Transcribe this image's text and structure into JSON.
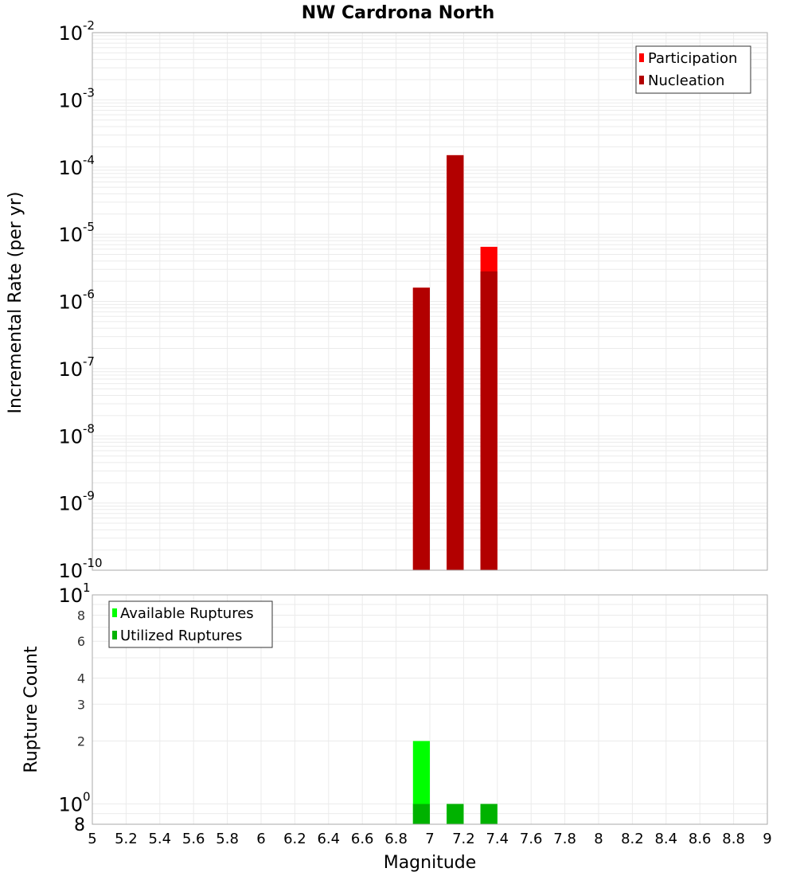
{
  "chart_data": [
    {
      "type": "bar",
      "title": "NW Cardrona North",
      "xlabel": "Magnitude",
      "ylabel": "Incremental Rate (per yr)",
      "yscale": "log",
      "ylim": [
        1e-10,
        0.01
      ],
      "xlim": [
        5,
        9
      ],
      "grid": true,
      "legend_position": "top-right",
      "y_tick_labels": [
        "10^-2",
        "10^-3",
        "10^-4",
        "10^-5",
        "10^-6",
        "10^-7",
        "10^-8",
        "10^-9",
        "10^-10"
      ],
      "bar_width": 0.1,
      "series": [
        {
          "name": "Participation",
          "color": "#ff0000",
          "x": [
            6.95,
            7.15,
            7.35
          ],
          "values": [
            1.6e-06,
            0.00015,
            6.5e-06
          ]
        },
        {
          "name": "Nucleation",
          "color": "#b20000",
          "x": [
            6.95,
            7.15,
            7.35
          ],
          "values": [
            1.6e-06,
            0.00015,
            2.8e-06
          ]
        }
      ]
    },
    {
      "type": "bar",
      "title": "",
      "xlabel": "Magnitude",
      "ylabel": "Rupture Count",
      "yscale": "log",
      "ylim": [
        0.8,
        10
      ],
      "xlim": [
        5,
        9
      ],
      "grid": true,
      "legend_position": "top-left",
      "y_tick_labels": [
        "10^1",
        "8",
        "6",
        "4",
        "3",
        "2",
        "10^0",
        "8"
      ],
      "bar_width": 0.1,
      "series": [
        {
          "name": "Available Ruptures",
          "color": "#00ff00",
          "x": [
            6.95,
            7.15,
            7.35
          ],
          "values": [
            2,
            1,
            1
          ]
        },
        {
          "name": "Utilized Ruptures",
          "color": "#00b200",
          "x": [
            6.95,
            7.15,
            7.35
          ],
          "values": [
            1,
            1,
            1
          ]
        }
      ]
    }
  ],
  "x_tick_labels": [
    "5",
    "5.2",
    "5.4",
    "5.6",
    "5.8",
    "6",
    "6.2",
    "6.4",
    "6.6",
    "6.8",
    "7",
    "7.2",
    "7.4",
    "7.6",
    "7.8",
    "8",
    "8.2",
    "8.4",
    "8.6",
    "8.8",
    "9"
  ],
  "colors": {
    "grid": "#ebebeb",
    "axis": "#aaaaaa"
  }
}
